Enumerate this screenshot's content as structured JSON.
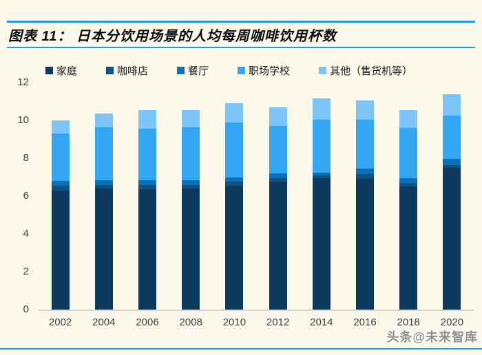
{
  "header": {
    "title": "图表 11： 日本分饮用场景的人均每周咖啡饮用杯数"
  },
  "footer": {
    "watermark": "头条@未来智库"
  },
  "page": {
    "background_color": "#FCF8EA",
    "accent_rule_color": "#1E9BE8",
    "axis_text_color": "#3F3F3F"
  },
  "chart_data": {
    "type": "bar",
    "stacked": true,
    "title": "日本分饮用场景的人均每周咖啡饮用杯数",
    "xlabel": "",
    "ylabel": "",
    "ylim": [
      0,
      12
    ],
    "yticks": [
      0,
      2,
      4,
      6,
      8,
      10,
      12
    ],
    "grid": false,
    "legend_position": "top",
    "categories": [
      "2002",
      "2004",
      "2006",
      "2008",
      "2010",
      "2012",
      "2014",
      "2016",
      "2018",
      "2020"
    ],
    "series": [
      {
        "key": "home",
        "name": "家庭",
        "color": "#0D3A5E",
        "values": [
          6.3,
          6.4,
          6.35,
          6.4,
          6.55,
          6.75,
          6.95,
          6.9,
          6.5,
          7.5
        ]
      },
      {
        "key": "coffee-shop",
        "name": "咖啡店",
        "color": "#0F5182",
        "values": [
          0.25,
          0.2,
          0.25,
          0.2,
          0.2,
          0.2,
          0.15,
          0.25,
          0.2,
          0.15
        ]
      },
      {
        "key": "restaurant",
        "name": "餐厅",
        "color": "#0C6FB8",
        "values": [
          0.25,
          0.25,
          0.25,
          0.25,
          0.25,
          0.25,
          0.15,
          0.3,
          0.25,
          0.3
        ]
      },
      {
        "key": "workplace-school",
        "name": "职场学校",
        "color": "#33A7F4",
        "values": [
          2.5,
          2.8,
          2.7,
          2.8,
          2.9,
          2.5,
          2.8,
          2.6,
          2.65,
          2.3
        ]
      },
      {
        "key": "other-vending",
        "name": "其他（售货机等）",
        "color": "#7DC5F8",
        "values": [
          0.7,
          0.7,
          1.0,
          0.9,
          1.0,
          1.0,
          1.1,
          1.0,
          0.95,
          1.15
        ]
      }
    ],
    "totals": [
      10.0,
      10.35,
      10.55,
      10.55,
      10.9,
      10.7,
      11.15,
      11.05,
      10.55,
      11.4
    ]
  }
}
